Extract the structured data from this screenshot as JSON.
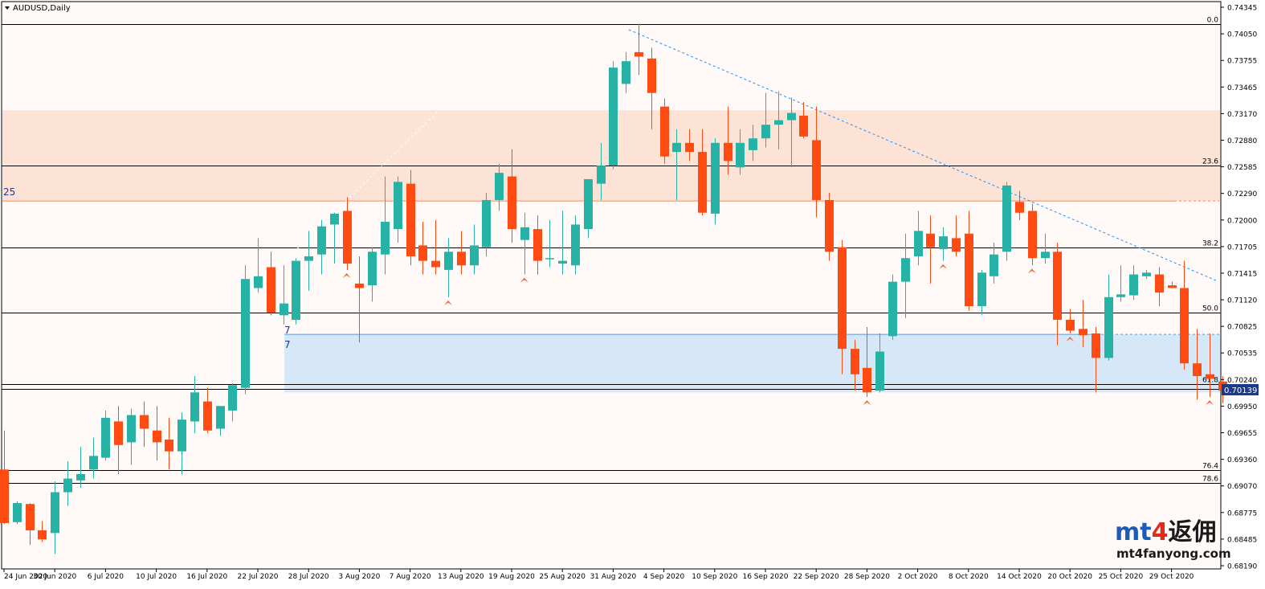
{
  "window": {
    "title": "AUDUSD,Daily"
  },
  "colors": {
    "background": "#fffaf8",
    "bull": "#26b2a4",
    "bear": "#ff4a12",
    "trendline": "#1e90ff",
    "resistance_zone": "#fde2d6",
    "support_zone": "#d6e8f8",
    "fib_line": "#000000",
    "price_tag": "#1d3a8a",
    "watermark_mt": "#1e5bb8",
    "watermark_4": "#e02a1a"
  },
  "labels": {
    "level_25": "25",
    "level_7a": "7",
    "level_7b": "7"
  },
  "watermark": {
    "brand_mt": "mt",
    "brand_4": "4",
    "brand_cn": "返佣",
    "url": "mt4fanyong.com"
  },
  "current_price": "0.70139",
  "chart_data": {
    "type": "candlestick",
    "title": "AUDUSD,Daily",
    "ylim": [
      0.6819,
      0.74345
    ],
    "y_ticks": [
      "0.74345",
      "0.74050",
      "0.73755",
      "0.73465",
      "0.73170",
      "0.72880",
      "0.72585",
      "0.72290",
      "0.72000",
      "0.71705",
      "0.71415",
      "0.71120",
      "0.70825",
      "0.70535",
      "0.70240",
      "0.69950",
      "0.69655",
      "0.69360",
      "0.69070",
      "0.68775",
      "0.68485",
      "0.68190"
    ],
    "x_ticks": [
      "24 Jun 2020",
      "30 Jun 2020",
      "6 Jul 2020",
      "10 Jul 2020",
      "16 Jul 2020",
      "22 Jul 2020",
      "28 Jul 2020",
      "3 Aug 2020",
      "7 Aug 2020",
      "13 Aug 2020",
      "19 Aug 2020",
      "25 Aug 2020",
      "31 Aug 2020",
      "4 Sep 2020",
      "10 Sep 2020",
      "16 Sep 2020",
      "22 Sep 2020",
      "28 Sep 2020",
      "2 Oct 2020",
      "8 Oct 2020",
      "14 Oct 2020",
      "20 Oct 2020",
      "25 Oct 2020",
      "29 Oct 2020"
    ],
    "fib_levels": [
      {
        "label": "0.0",
        "price": 0.7416
      },
      {
        "label": "23.6",
        "price": 0.726
      },
      {
        "label": "38.2",
        "price": 0.717
      },
      {
        "label": "50.0",
        "price": 0.7098
      },
      {
        "label": "61.8",
        "price": 0.70195
      },
      {
        "label": "76.4",
        "price": 0.6924
      },
      {
        "label": "78.6",
        "price": 0.691
      }
    ],
    "zones": [
      {
        "name": "resistance",
        "top": 0.7321,
        "bottom": 0.7221
      },
      {
        "name": "support",
        "top": 0.7074,
        "bottom": 0.701
      }
    ],
    "candles": [
      {
        "o": 0.6925,
        "h": 0.6968,
        "l": 0.6865,
        "c": 0.6866
      },
      {
        "o": 0.6867,
        "h": 0.689,
        "l": 0.6865,
        "c": 0.6888
      },
      {
        "o": 0.6887,
        "h": 0.6888,
        "l": 0.6842,
        "c": 0.6858
      },
      {
        "o": 0.6858,
        "h": 0.6868,
        "l": 0.6845,
        "c": 0.6848
      },
      {
        "o": 0.6855,
        "h": 0.6912,
        "l": 0.6832,
        "c": 0.69
      },
      {
        "o": 0.69,
        "h": 0.6934,
        "l": 0.6885,
        "c": 0.6915
      },
      {
        "o": 0.6913,
        "h": 0.695,
        "l": 0.6905,
        "c": 0.692
      },
      {
        "o": 0.6925,
        "h": 0.696,
        "l": 0.6915,
        "c": 0.694
      },
      {
        "o": 0.6938,
        "h": 0.699,
        "l": 0.6935,
        "c": 0.6982
      },
      {
        "o": 0.6978,
        "h": 0.6995,
        "l": 0.692,
        "c": 0.6952
      },
      {
        "o": 0.6955,
        "h": 0.6992,
        "l": 0.693,
        "c": 0.6985
      },
      {
        "o": 0.6985,
        "h": 0.7,
        "l": 0.695,
        "c": 0.697
      },
      {
        "o": 0.6968,
        "h": 0.6995,
        "l": 0.6935,
        "c": 0.6955
      },
      {
        "o": 0.6958,
        "h": 0.6982,
        "l": 0.6925,
        "c": 0.6945
      },
      {
        "o": 0.6945,
        "h": 0.6988,
        "l": 0.692,
        "c": 0.698
      },
      {
        "o": 0.6978,
        "h": 0.7028,
        "l": 0.6965,
        "c": 0.701
      },
      {
        "o": 0.7,
        "h": 0.7015,
        "l": 0.6965,
        "c": 0.6968
      },
      {
        "o": 0.697,
        "h": 0.6995,
        "l": 0.6962,
        "c": 0.6995
      },
      {
        "o": 0.699,
        "h": 0.702,
        "l": 0.6978,
        "c": 0.7018
      },
      {
        "o": 0.7015,
        "h": 0.715,
        "l": 0.7008,
        "c": 0.7135
      },
      {
        "o": 0.7125,
        "h": 0.718,
        "l": 0.712,
        "c": 0.7138
      },
      {
        "o": 0.7148,
        "h": 0.7165,
        "l": 0.7095,
        "c": 0.7098
      },
      {
        "o": 0.7095,
        "h": 0.715,
        "l": 0.7085,
        "c": 0.7108
      },
      {
        "o": 0.709,
        "h": 0.7158,
        "l": 0.7085,
        "c": 0.7155
      },
      {
        "o": 0.7155,
        "h": 0.7188,
        "l": 0.7122,
        "c": 0.716
      },
      {
        "o": 0.7162,
        "h": 0.72,
        "l": 0.714,
        "c": 0.7193
      },
      {
        "o": 0.7195,
        "h": 0.7208,
        "l": 0.7152,
        "c": 0.7207
      },
      {
        "o": 0.721,
        "h": 0.7225,
        "l": 0.7145,
        "c": 0.7152
      },
      {
        "o": 0.713,
        "h": 0.716,
        "l": 0.7065,
        "c": 0.7125
      },
      {
        "o": 0.7128,
        "h": 0.717,
        "l": 0.711,
        "c": 0.7165
      },
      {
        "o": 0.7162,
        "h": 0.7248,
        "l": 0.714,
        "c": 0.7198
      },
      {
        "o": 0.719,
        "h": 0.7248,
        "l": 0.7175,
        "c": 0.7242
      },
      {
        "o": 0.724,
        "h": 0.7255,
        "l": 0.715,
        "c": 0.716
      },
      {
        "o": 0.7172,
        "h": 0.7198,
        "l": 0.714,
        "c": 0.7155
      },
      {
        "o": 0.7155,
        "h": 0.72,
        "l": 0.714,
        "c": 0.7148
      },
      {
        "o": 0.7145,
        "h": 0.718,
        "l": 0.7115,
        "c": 0.7165
      },
      {
        "o": 0.7165,
        "h": 0.7188,
        "l": 0.714,
        "c": 0.715
      },
      {
        "o": 0.715,
        "h": 0.7195,
        "l": 0.714,
        "c": 0.7172
      },
      {
        "o": 0.717,
        "h": 0.723,
        "l": 0.716,
        "c": 0.7222
      },
      {
        "o": 0.7222,
        "h": 0.7262,
        "l": 0.721,
        "c": 0.7252
      },
      {
        "o": 0.7248,
        "h": 0.7278,
        "l": 0.7175,
        "c": 0.719
      },
      {
        "o": 0.7178,
        "h": 0.7208,
        "l": 0.714,
        "c": 0.7192
      },
      {
        "o": 0.719,
        "h": 0.7205,
        "l": 0.714,
        "c": 0.7155
      },
      {
        "o": 0.7158,
        "h": 0.72,
        "l": 0.7148,
        "c": 0.7158
      },
      {
        "o": 0.7152,
        "h": 0.721,
        "l": 0.714,
        "c": 0.7155
      },
      {
        "o": 0.715,
        "h": 0.7205,
        "l": 0.714,
        "c": 0.7195
      },
      {
        "o": 0.719,
        "h": 0.7245,
        "l": 0.718,
        "c": 0.7245
      },
      {
        "o": 0.724,
        "h": 0.7285,
        "l": 0.7222,
        "c": 0.726
      },
      {
        "o": 0.726,
        "h": 0.7375,
        "l": 0.7256,
        "c": 0.7368
      },
      {
        "o": 0.735,
        "h": 0.7385,
        "l": 0.734,
        "c": 0.7375
      },
      {
        "o": 0.7385,
        "h": 0.7416,
        "l": 0.736,
        "c": 0.738
      },
      {
        "o": 0.7378,
        "h": 0.739,
        "l": 0.73,
        "c": 0.734
      },
      {
        "o": 0.7325,
        "h": 0.7334,
        "l": 0.7262,
        "c": 0.727
      },
      {
        "o": 0.7275,
        "h": 0.73,
        "l": 0.7222,
        "c": 0.7285
      },
      {
        "o": 0.7285,
        "h": 0.73,
        "l": 0.7265,
        "c": 0.7275
      },
      {
        "o": 0.7275,
        "h": 0.73,
        "l": 0.7205,
        "c": 0.7208
      },
      {
        "o": 0.7207,
        "h": 0.729,
        "l": 0.7195,
        "c": 0.7285
      },
      {
        "o": 0.7285,
        "h": 0.7325,
        "l": 0.725,
        "c": 0.7265
      },
      {
        "o": 0.7258,
        "h": 0.73,
        "l": 0.725,
        "c": 0.7285
      },
      {
        "o": 0.7277,
        "h": 0.7305,
        "l": 0.7265,
        "c": 0.729
      },
      {
        "o": 0.729,
        "h": 0.734,
        "l": 0.728,
        "c": 0.7305
      },
      {
        "o": 0.7305,
        "h": 0.7342,
        "l": 0.7278,
        "c": 0.731
      },
      {
        "o": 0.731,
        "h": 0.7335,
        "l": 0.7258,
        "c": 0.7318
      },
      {
        "o": 0.7315,
        "h": 0.733,
        "l": 0.729,
        "c": 0.7292
      },
      {
        "o": 0.7288,
        "h": 0.7325,
        "l": 0.7203,
        "c": 0.7222
      },
      {
        "o": 0.7222,
        "h": 0.723,
        "l": 0.7155,
        "c": 0.7165
      },
      {
        "o": 0.717,
        "h": 0.7178,
        "l": 0.703,
        "c": 0.7058
      },
      {
        "o": 0.7058,
        "h": 0.7068,
        "l": 0.7012,
        "c": 0.703
      },
      {
        "o": 0.7037,
        "h": 0.7082,
        "l": 0.7005,
        "c": 0.701
      },
      {
        "o": 0.7012,
        "h": 0.7075,
        "l": 0.701,
        "c": 0.7055
      },
      {
        "o": 0.7072,
        "h": 0.714,
        "l": 0.7068,
        "c": 0.7132
      },
      {
        "o": 0.7132,
        "h": 0.7185,
        "l": 0.7092,
        "c": 0.7158
      },
      {
        "o": 0.716,
        "h": 0.721,
        "l": 0.715,
        "c": 0.7188
      },
      {
        "o": 0.7185,
        "h": 0.7205,
        "l": 0.713,
        "c": 0.717
      },
      {
        "o": 0.7168,
        "h": 0.7192,
        "l": 0.7155,
        "c": 0.7182
      },
      {
        "o": 0.718,
        "h": 0.7205,
        "l": 0.716,
        "c": 0.7165
      },
      {
        "o": 0.7185,
        "h": 0.721,
        "l": 0.71,
        "c": 0.7105
      },
      {
        "o": 0.7105,
        "h": 0.7145,
        "l": 0.7095,
        "c": 0.7142
      },
      {
        "o": 0.7138,
        "h": 0.7175,
        "l": 0.713,
        "c": 0.7162
      },
      {
        "o": 0.7165,
        "h": 0.7242,
        "l": 0.7155,
        "c": 0.7238
      },
      {
        "o": 0.722,
        "h": 0.7232,
        "l": 0.72,
        "c": 0.7208
      },
      {
        "o": 0.721,
        "h": 0.7218,
        "l": 0.715,
        "c": 0.7158
      },
      {
        "o": 0.7158,
        "h": 0.7185,
        "l": 0.7152,
        "c": 0.7165
      },
      {
        "o": 0.7165,
        "h": 0.7175,
        "l": 0.7062,
        "c": 0.709
      },
      {
        "o": 0.709,
        "h": 0.7102,
        "l": 0.7075,
        "c": 0.7078
      },
      {
        "o": 0.708,
        "h": 0.7112,
        "l": 0.706,
        "c": 0.7073
      },
      {
        "o": 0.7075,
        "h": 0.7082,
        "l": 0.701,
        "c": 0.7048
      },
      {
        "o": 0.7048,
        "h": 0.714,
        "l": 0.7045,
        "c": 0.7115
      },
      {
        "o": 0.7115,
        "h": 0.715,
        "l": 0.711,
        "c": 0.7118
      },
      {
        "o": 0.7117,
        "h": 0.715,
        "l": 0.7112,
        "c": 0.714
      },
      {
        "o": 0.7138,
        "h": 0.7145,
        "l": 0.7135,
        "c": 0.7142
      },
      {
        "o": 0.714,
        "h": 0.7148,
        "l": 0.7105,
        "c": 0.712
      },
      {
        "o": 0.7128,
        "h": 0.7132,
        "l": 0.7125,
        "c": 0.7125
      },
      {
        "o": 0.7125,
        "h": 0.7155,
        "l": 0.7035,
        "c": 0.7042
      },
      {
        "o": 0.7042,
        "h": 0.708,
        "l": 0.7002,
        "c": 0.7028
      },
      {
        "o": 0.703,
        "h": 0.7075,
        "l": 0.7005,
        "c": 0.7025
      },
      {
        "o": 0.7022,
        "h": 0.7028,
        "l": 0.6998,
        "c": 0.7012
      }
    ]
  }
}
